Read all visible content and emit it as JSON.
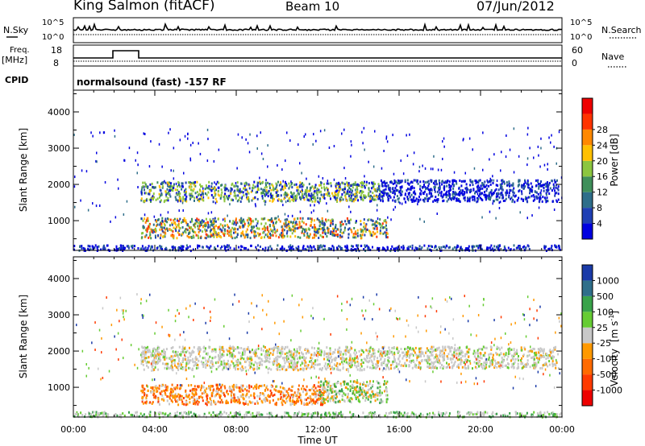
{
  "header": {
    "title": "King Salmon (fitACF)",
    "beam": "Beam 10",
    "date": "07/Jun/2012"
  },
  "top_panels": {
    "nsky_label": "N.Sky",
    "nsky_ticks": [
      "10^5",
      "10^0"
    ],
    "nsearch_label": "N.Search",
    "nsearch_ticks": [
      "10^5",
      "10^0"
    ],
    "freq_label": "Freq.",
    "freq_unit": "[MHz]",
    "freq_ticks": [
      "18",
      "8"
    ],
    "nave_label": "Nave",
    "nave_ticks": [
      "60",
      "0"
    ],
    "cpid_label": "CPID",
    "cpid_text": "normalsound (fast) -157 RF"
  },
  "chart_data": [
    {
      "type": "heatmap",
      "name": "power",
      "ylabel": "Slant Range [km]",
      "y_ticks": [
        1000,
        2000,
        3000,
        4000
      ],
      "ylim": [
        180,
        4600
      ],
      "xlim_hours": [
        0,
        24
      ],
      "colorbar": {
        "label": "Power [dB]",
        "tick_labels": [
          "4",
          "8",
          "12",
          "16",
          "20",
          "24",
          "28"
        ],
        "colors": [
          "#0000e0",
          "#1f3fb4",
          "#2e6e8a",
          "#3f8f5a",
          "#8cc63f",
          "#ffc000",
          "#ff8800",
          "#ff3300",
          "#ee0000"
        ]
      },
      "echo_bands": [
        {
          "t_start": 3.3,
          "t_end": 15.2,
          "range_lo_km": 1550,
          "range_hi_km": 2100,
          "level": "medium"
        },
        {
          "t_start": 15.0,
          "t_end": 23.8,
          "range_lo_km": 1550,
          "range_hi_km": 2150,
          "level": "low"
        },
        {
          "t_start": 3.3,
          "t_end": 15.4,
          "range_lo_km": 550,
          "range_hi_km": 1100,
          "level": "high"
        },
        {
          "t_start": 0.0,
          "t_end": 24.0,
          "range_lo_km": 200,
          "range_hi_km": 350,
          "level": "low"
        }
      ]
    },
    {
      "type": "heatmap",
      "name": "velocity",
      "xlabel": "Time UT",
      "ylabel": "Slant Range [km]",
      "x_tick_labels": [
        "00:00",
        "04:00",
        "08:00",
        "12:00",
        "16:00",
        "20:00",
        "00:00"
      ],
      "y_ticks": [
        1000,
        2000,
        3000,
        4000
      ],
      "ylim": [
        180,
        4600
      ],
      "xlim_hours": [
        0,
        24
      ],
      "colorbar": {
        "label": "Velocity",
        "unit_main": "[m s",
        "unit_exp": "-1",
        "unit_close": "]",
        "tick_labels": [
          "1000",
          "500",
          "100",
          "25",
          "-25",
          "-100",
          "-500",
          "-1000"
        ],
        "colors": [
          "#1a3aa8",
          "#2f6f8a",
          "#39a34a",
          "#66cc33",
          "#c8c8c8",
          "#ff9900",
          "#ff6a00",
          "#ff3a00",
          "#ee0000"
        ]
      },
      "echo_bands": [
        {
          "t_start": 3.3,
          "t_end": 16.0,
          "range_lo_km": 1500,
          "range_hi_km": 2150,
          "level": "ground"
        },
        {
          "t_start": 16.0,
          "t_end": 23.8,
          "range_lo_km": 1550,
          "range_hi_km": 2150,
          "level": "ground"
        },
        {
          "t_start": 3.3,
          "t_end": 12.3,
          "range_lo_km": 550,
          "range_hi_km": 1100,
          "level": "negative"
        },
        {
          "t_start": 12.0,
          "t_end": 15.4,
          "range_lo_km": 600,
          "range_hi_km": 1200,
          "level": "mixed"
        },
        {
          "t_start": 0.0,
          "t_end": 24.0,
          "range_lo_km": 200,
          "range_hi_km": 350,
          "level": "positive"
        }
      ]
    }
  ]
}
